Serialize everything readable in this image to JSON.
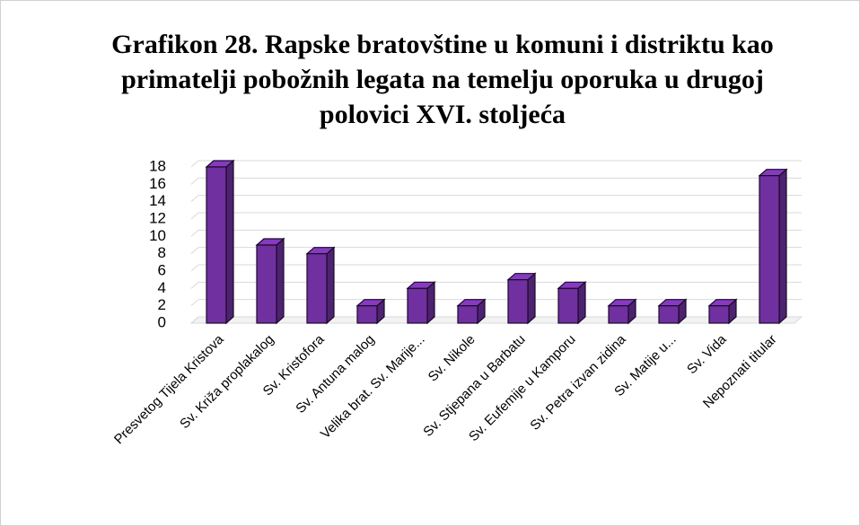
{
  "chart_data": {
    "type": "bar3d",
    "title": "Grafikon 28. Rapske bratovštine u komuni i distriktu kao primatelji pobožnih legata na temelju oporuka u drugoj polovici XVI. stoljeća",
    "categories": [
      "Presvetog Tijela Kristova",
      "Sv. Križa proplakalog",
      "Sv. Kristofora",
      "Sv. Antuna malog",
      "Velika brat. Sv. Marije...",
      "Sv. Nikole",
      "Sv. Stjepana u Barbatu",
      "Sv. Eufemije u Kamporu",
      "Sv. Petra izvan zidina",
      "Sv. Matije u...",
      "Sv. Vida",
      "Nepoznati titular"
    ],
    "values": [
      18,
      9,
      8,
      2,
      4,
      2,
      5,
      4,
      2,
      2,
      2,
      17
    ],
    "color": "#7030a0",
    "ylim": [
      0,
      18
    ],
    "yticks": [
      0,
      2,
      4,
      6,
      8,
      10,
      12,
      14,
      16,
      18
    ],
    "grid": true
  }
}
